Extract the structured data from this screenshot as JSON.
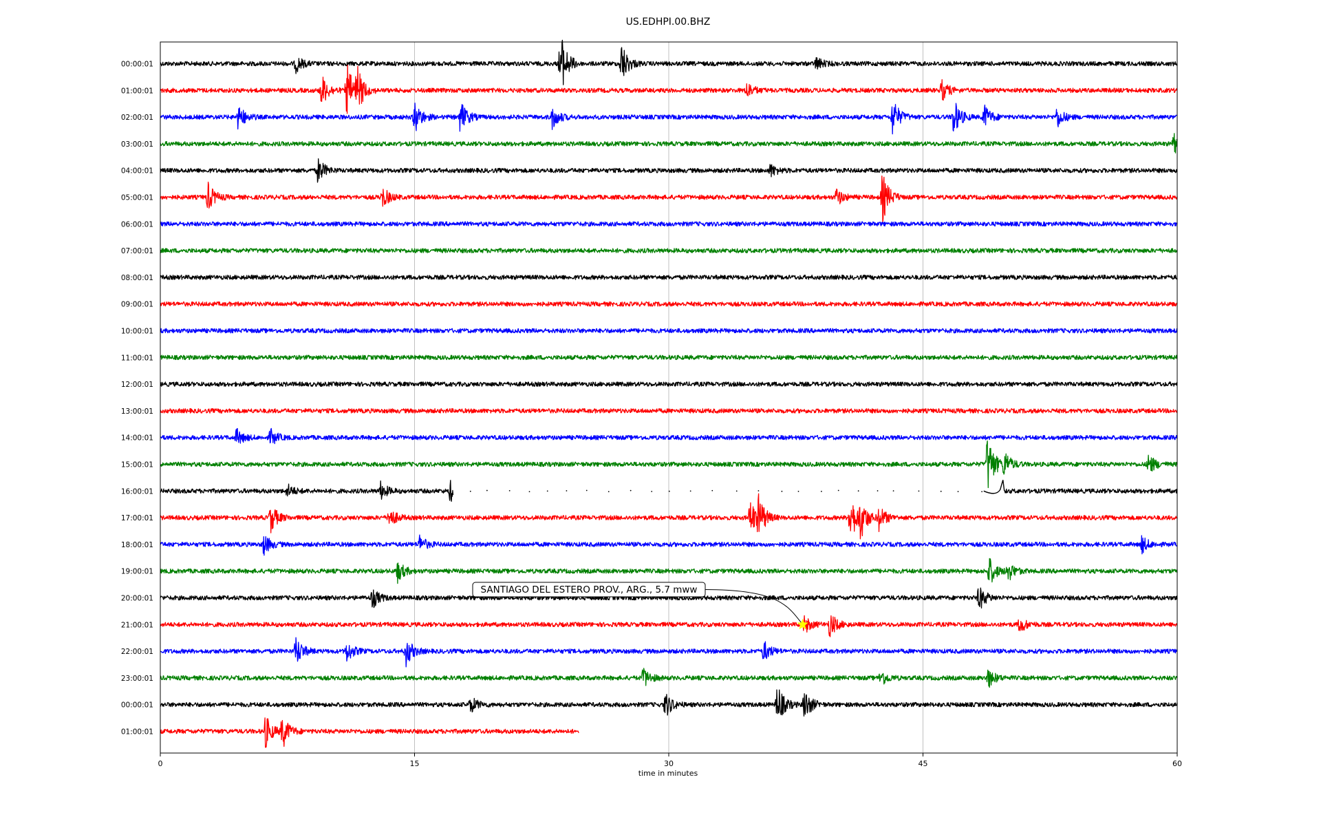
{
  "chart_data": {
    "type": "line",
    "title": "US.EDHPI.00.BHZ",
    "xlabel": "time in minutes",
    "ylabel": "",
    "xlim": [
      0,
      60
    ],
    "xticks": [
      0,
      15,
      30,
      45,
      60
    ],
    "grid": "vertical",
    "series_colors": [
      "#000000",
      "#ff0000",
      "#0000ff",
      "#008000"
    ],
    "rows": [
      {
        "label": "00:00:01",
        "end_min": 60,
        "events": [
          {
            "t": 8,
            "amp": 0.4
          },
          {
            "t": 23.6,
            "amp": 1.6
          },
          {
            "t": 27.2,
            "amp": 1.0
          },
          {
            "t": 38.7,
            "amp": 0.3
          }
        ]
      },
      {
        "label": "01:00:01",
        "end_min": 60,
        "events": [
          {
            "t": 9.5,
            "amp": 0.8
          },
          {
            "t": 11.0,
            "amp": 1.3
          },
          {
            "t": 11.6,
            "amp": 1.0
          },
          {
            "t": 34.6,
            "amp": 0.4
          },
          {
            "t": 46.1,
            "amp": 0.5
          }
        ]
      },
      {
        "label": "02:00:01",
        "end_min": 60,
        "events": [
          {
            "t": 4.6,
            "amp": 0.6
          },
          {
            "t": 15.0,
            "amp": 0.8
          },
          {
            "t": 17.7,
            "amp": 0.8
          },
          {
            "t": 23.1,
            "amp": 0.6
          },
          {
            "t": 43.2,
            "amp": 0.9
          },
          {
            "t": 46.8,
            "amp": 0.9
          },
          {
            "t": 48.6,
            "amp": 0.6
          },
          {
            "t": 52.9,
            "amp": 0.5
          }
        ]
      },
      {
        "label": "03:00:01",
        "end_min": 60,
        "events": [
          {
            "t": 59.8,
            "amp": 0.5
          }
        ]
      },
      {
        "label": "04:00:01",
        "end_min": 60,
        "events": [
          {
            "t": 9.3,
            "amp": 0.6
          },
          {
            "t": 36.0,
            "amp": 0.3
          }
        ]
      },
      {
        "label": "05:00:01",
        "end_min": 60,
        "events": [
          {
            "t": 2.8,
            "amp": 0.7
          },
          {
            "t": 13.1,
            "amp": 0.5
          },
          {
            "t": 39.9,
            "amp": 0.4
          },
          {
            "t": 42.6,
            "amp": 1.2
          }
        ]
      },
      {
        "label": "06:00:01",
        "end_min": 60,
        "events": []
      },
      {
        "label": "07:00:01",
        "end_min": 60,
        "events": []
      },
      {
        "label": "08:00:01",
        "end_min": 60,
        "events": []
      },
      {
        "label": "09:00:01",
        "end_min": 60,
        "events": []
      },
      {
        "label": "10:00:01",
        "end_min": 60,
        "events": []
      },
      {
        "label": "11:00:01",
        "end_min": 60,
        "events": []
      },
      {
        "label": "12:00:01",
        "end_min": 60,
        "events": []
      },
      {
        "label": "13:00:01",
        "end_min": 60,
        "events": []
      },
      {
        "label": "14:00:01",
        "end_min": 60,
        "events": [
          {
            "t": 4.5,
            "amp": 0.4
          },
          {
            "t": 6.5,
            "amp": 0.4
          }
        ]
      },
      {
        "label": "15:00:01",
        "end_min": 60,
        "events": [
          {
            "t": 48.8,
            "amp": 1.5
          },
          {
            "t": 49.8,
            "amp": 0.6
          },
          {
            "t": 58.3,
            "amp": 0.5
          }
        ]
      },
      {
        "label": "16:00:01",
        "end_min": 60,
        "gap": [
          17.3,
          49.8
        ],
        "events": [
          {
            "t": 7.5,
            "amp": 0.3
          },
          {
            "t": 13.0,
            "amp": 0.4
          },
          {
            "t": 17.1,
            "amp": 0.5
          }
        ]
      },
      {
        "label": "17:00:01",
        "end_min": 60,
        "events": [
          {
            "t": 6.5,
            "amp": 0.7
          },
          {
            "t": 13.5,
            "amp": 0.5
          },
          {
            "t": 34.8,
            "amp": 0.9
          },
          {
            "t": 35.3,
            "amp": 0.9
          },
          {
            "t": 40.7,
            "amp": 1.2
          },
          {
            "t": 41.3,
            "amp": 0.9
          },
          {
            "t": 42.4,
            "amp": 0.6
          }
        ]
      },
      {
        "label": "18:00:01",
        "end_min": 60,
        "events": [
          {
            "t": 6.1,
            "amp": 0.5
          },
          {
            "t": 15.3,
            "amp": 0.4
          },
          {
            "t": 57.9,
            "amp": 0.4
          }
        ]
      },
      {
        "label": "19:00:01",
        "end_min": 60,
        "events": [
          {
            "t": 14.0,
            "amp": 0.5
          },
          {
            "t": 48.9,
            "amp": 0.7
          },
          {
            "t": 50.0,
            "amp": 0.5
          }
        ]
      },
      {
        "label": "20:00:01",
        "end_min": 60,
        "events": [
          {
            "t": 12.5,
            "amp": 0.5
          },
          {
            "t": 48.3,
            "amp": 0.6
          }
        ]
      },
      {
        "label": "21:00:01",
        "end_min": 60,
        "events": [
          {
            "t": 38.0,
            "amp": 0.4
          },
          {
            "t": 39.5,
            "amp": 0.6
          },
          {
            "t": 50.7,
            "amp": 0.4
          }
        ]
      },
      {
        "label": "22:00:01",
        "end_min": 60,
        "events": [
          {
            "t": 8.0,
            "amp": 0.7
          },
          {
            "t": 11.0,
            "amp": 0.5
          },
          {
            "t": 14.5,
            "amp": 0.7
          },
          {
            "t": 35.6,
            "amp": 0.5
          }
        ]
      },
      {
        "label": "23:00:01",
        "end_min": 60,
        "events": [
          {
            "t": 28.5,
            "amp": 0.5
          },
          {
            "t": 42.5,
            "amp": 0.4
          },
          {
            "t": 48.8,
            "amp": 0.5
          }
        ]
      },
      {
        "label": "00:00:01",
        "end_min": 60,
        "events": [
          {
            "t": 18.3,
            "amp": 0.4
          },
          {
            "t": 29.8,
            "amp": 0.6
          },
          {
            "t": 36.4,
            "amp": 1.0
          },
          {
            "t": 38.0,
            "amp": 0.8
          }
        ]
      },
      {
        "label": "01:00:01",
        "end_min": 24.7,
        "events": [
          {
            "t": 6.2,
            "amp": 0.8
          },
          {
            "t": 7.2,
            "amp": 0.8
          }
        ]
      }
    ],
    "annotation": {
      "text": "SANTIAGO DEL ESTERO PROV., ARG., 5.7 mww",
      "row_index": 21,
      "t": 37.9,
      "marker": "star",
      "marker_color": "#ffff00"
    }
  }
}
